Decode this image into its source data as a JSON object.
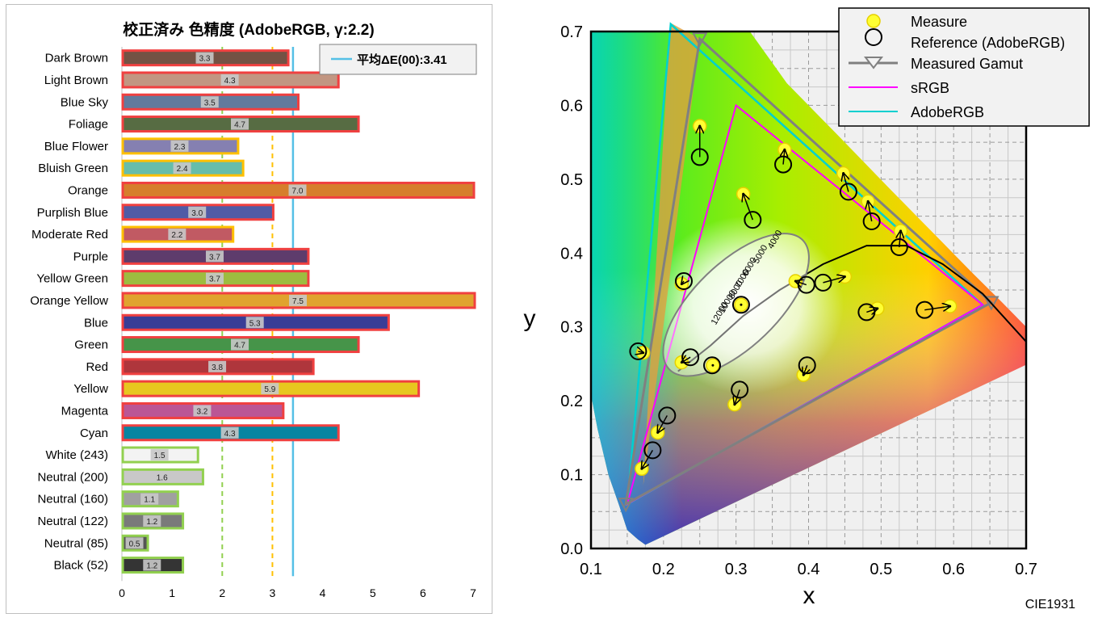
{
  "chart_data": [
    {
      "type": "bar",
      "orientation": "horizontal",
      "title": "校正済み 色精度 (AdobeRGB, γ:2.2)",
      "legend": {
        "label": "平均ΔE(00):3.41",
        "position": "top-right"
      },
      "average": 3.41,
      "thresholds": [
        {
          "value": 2,
          "color": "#92d050",
          "style": "dashed"
        },
        {
          "value": 3,
          "color": "#ffc000",
          "style": "dashed"
        }
      ],
      "xlim": [
        0,
        7
      ],
      "xticks": [
        "0",
        "1",
        "2",
        "3",
        "4",
        "5",
        "6",
        "7"
      ],
      "categories": [
        "Dark Brown",
        "Light Brown",
        "Blue Sky",
        "Foliage",
        "Blue Flower",
        "Bluish Green",
        "Orange",
        "Purplish Blue",
        "Moderate Red",
        "Purple",
        "Yellow Green",
        "Orange Yellow",
        "Blue",
        "Green",
        "Red",
        "Yellow",
        "Magenta",
        "Cyan",
        "White (243)",
        "Neutral (200)",
        "Neutral (160)",
        "Neutral (122)",
        "Neutral (85)",
        "Black (52)"
      ],
      "values": [
        3.3,
        4.3,
        3.5,
        4.7,
        2.3,
        2.4,
        7.0,
        3.0,
        2.2,
        3.7,
        3.7,
        7.5,
        5.3,
        4.7,
        3.8,
        5.9,
        3.2,
        4.3,
        1.5,
        1.6,
        1.1,
        1.2,
        0.5,
        1.2
      ],
      "value_labels": [
        "3.3",
        "4.3",
        "3.5",
        "4.7",
        "2.3",
        "2.4",
        "7.0",
        "3.0",
        "2.2",
        "3.7",
        "3.7",
        "7.5",
        "5.3",
        "4.7",
        "3.8",
        "5.9",
        "3.2",
        "4.3",
        "1.5",
        "1.6",
        "1.1",
        "1.2",
        "0.5",
        "1.2"
      ],
      "fill_colors": [
        "#735244",
        "#c29682",
        "#627a9d",
        "#576c43",
        "#8580b1",
        "#67bdaa",
        "#d67e2c",
        "#505ba6",
        "#c15a63",
        "#5e3c6c",
        "#9dbc40",
        "#e0a32e",
        "#383d96",
        "#469449",
        "#af363c",
        "#e7c71f",
        "#bb5695",
        "#0885a1",
        "#f3f3f3",
        "#c8c8c8",
        "#a0a0a0",
        "#7a7a7a",
        "#555555",
        "#343434"
      ],
      "border_colors": [
        "#f04040",
        "#f04040",
        "#f04040",
        "#f04040",
        "#ffc000",
        "#ffc000",
        "#f04040",
        "#f04040",
        "#ffc000",
        "#f04040",
        "#f04040",
        "#f04040",
        "#f04040",
        "#f04040",
        "#f04040",
        "#f04040",
        "#f04040",
        "#f04040",
        "#92d050",
        "#92d050",
        "#92d050",
        "#92d050",
        "#92d050",
        "#92d050"
      ]
    },
    {
      "type": "scatter",
      "subtitle": "CIE1931",
      "xlabel": "x",
      "ylabel": "y",
      "xlim": [
        0.1,
        0.7
      ],
      "ylim": [
        0.0,
        0.7
      ],
      "xticks": [
        "0.1",
        "0.2",
        "0.3",
        "0.4",
        "0.5",
        "0.6",
        "0.7"
      ],
      "yticks": [
        "0.0",
        "0.1",
        "0.2",
        "0.3",
        "0.4",
        "0.5",
        "0.6",
        "0.7"
      ],
      "legend": {
        "position": "top-right",
        "entries": [
          "Measure",
          "Reference (AdobeRGB)",
          "Measured Gamut",
          "sRGB",
          "AdobeRGB"
        ]
      },
      "series": [
        {
          "name": "Measured Gamut",
          "color": "#808080",
          "points": [
            [
              0.652,
              0.333
            ],
            [
              0.25,
              0.69
            ],
            [
              0.148,
              0.06
            ]
          ]
        },
        {
          "name": "sRGB",
          "color": "#ff00ff",
          "points": [
            [
              0.64,
              0.33
            ],
            [
              0.3,
              0.6
            ],
            [
              0.15,
              0.06
            ]
          ]
        },
        {
          "name": "AdobeRGB",
          "color": "#00d0d0",
          "points": [
            [
              0.64,
              0.33
            ],
            [
              0.21,
              0.71
            ],
            [
              0.15,
              0.06
            ]
          ]
        }
      ],
      "patches": {
        "measure": [
          [
            0.25,
            0.572
          ],
          [
            0.31,
            0.48
          ],
          [
            0.367,
            0.54
          ],
          [
            0.448,
            0.508
          ],
          [
            0.482,
            0.47
          ],
          [
            0.527,
            0.43
          ],
          [
            0.225,
            0.358
          ],
          [
            0.307,
            0.33
          ],
          [
            0.382,
            0.362
          ],
          [
            0.45,
            0.368
          ],
          [
            0.495,
            0.325
          ],
          [
            0.595,
            0.328
          ],
          [
            0.172,
            0.265
          ],
          [
            0.225,
            0.252
          ],
          [
            0.268,
            0.248
          ],
          [
            0.393,
            0.235
          ],
          [
            0.298,
            0.195
          ],
          [
            0.192,
            0.157
          ],
          [
            0.17,
            0.108
          ]
        ],
        "reference": [
          [
            0.25,
            0.53
          ],
          [
            0.323,
            0.445
          ],
          [
            0.365,
            0.52
          ],
          [
            0.455,
            0.483
          ],
          [
            0.487,
            0.443
          ],
          [
            0.525,
            0.408
          ],
          [
            0.228,
            0.362
          ],
          [
            0.307,
            0.33
          ],
          [
            0.397,
            0.357
          ],
          [
            0.42,
            0.36
          ],
          [
            0.48,
            0.32
          ],
          [
            0.56,
            0.323
          ],
          [
            0.165,
            0.267
          ],
          [
            0.237,
            0.259
          ],
          [
            0.267,
            0.248
          ],
          [
            0.398,
            0.248
          ],
          [
            0.305,
            0.215
          ],
          [
            0.205,
            0.18
          ],
          [
            0.185,
            0.133
          ]
        ]
      },
      "locus_labels": [
        "4000",
        "5000",
        "6000",
        "7000",
        "8000",
        "10000",
        "12000"
      ]
    }
  ]
}
